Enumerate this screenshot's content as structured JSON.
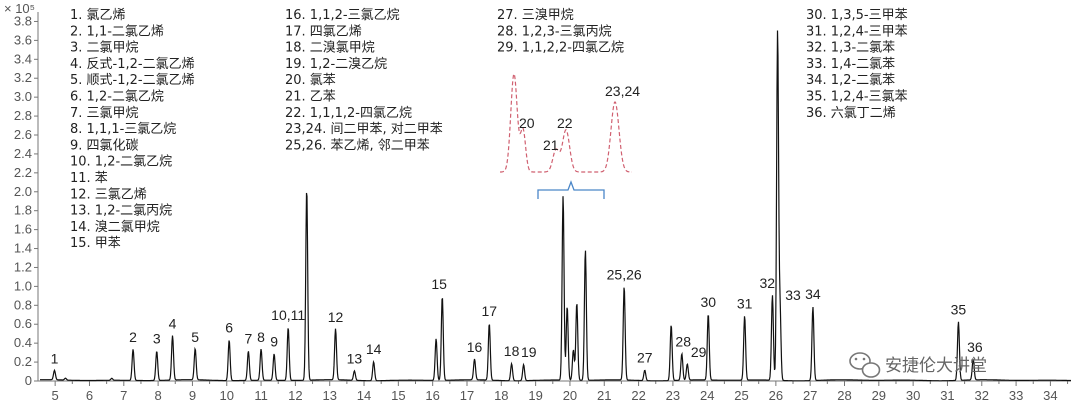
{
  "chart_data": {
    "type": "line",
    "title": "",
    "xlabel": "",
    "ylabel": "",
    "y_multiplier": "× 10⁵",
    "xlim": [
      4.5,
      34.6
    ],
    "ylim": [
      0,
      3.9
    ],
    "x_ticks": [
      "5",
      "6",
      "7",
      "8",
      "9",
      "10",
      "11",
      "12",
      "13",
      "14",
      "15",
      "16",
      "17",
      "18",
      "19",
      "20",
      "21",
      "22",
      "23",
      "24",
      "25",
      "26",
      "27",
      "28",
      "29",
      "30",
      "31",
      "32",
      "33",
      "34"
    ],
    "y_ticks": [
      "0",
      "0.2",
      "0.4",
      "0.6",
      "0.8",
      "1.0",
      "1.2",
      "1.4",
      "1.6",
      "1.8",
      "2.0",
      "2.2",
      "2.4",
      "2.6",
      "2.8",
      "3.0",
      "3.2",
      "3.4",
      "3.6",
      "3.8"
    ],
    "trace_color": "#111111",
    "peaks": [
      {
        "x": 4.98,
        "y": 0.1
      },
      {
        "x": 5.3,
        "y": 0.02
      },
      {
        "x": 6.65,
        "y": 0.02
      },
      {
        "x": 7.27,
        "y": 0.33
      },
      {
        "x": 7.96,
        "y": 0.31
      },
      {
        "x": 8.42,
        "y": 0.47
      },
      {
        "x": 9.08,
        "y": 0.33
      },
      {
        "x": 10.07,
        "y": 0.43
      },
      {
        "x": 10.63,
        "y": 0.31
      },
      {
        "x": 11.0,
        "y": 0.33
      },
      {
        "x": 11.38,
        "y": 0.28
      },
      {
        "x": 11.79,
        "y": 0.56
      },
      {
        "x": 12.33,
        "y": 2.03
      },
      {
        "x": 13.17,
        "y": 0.54
      },
      {
        "x": 13.72,
        "y": 0.1
      },
      {
        "x": 14.28,
        "y": 0.2
      },
      {
        "x": 16.1,
        "y": 0.44
      },
      {
        "x": 16.28,
        "y": 0.89
      },
      {
        "x": 17.22,
        "y": 0.22
      },
      {
        "x": 17.65,
        "y": 0.6
      },
      {
        "x": 18.3,
        "y": 0.18
      },
      {
        "x": 18.65,
        "y": 0.17
      },
      {
        "x": 19.8,
        "y": 1.95
      },
      {
        "x": 19.92,
        "y": 0.78
      },
      {
        "x": 20.1,
        "y": 0.32
      },
      {
        "x": 20.2,
        "y": 0.82
      },
      {
        "x": 20.45,
        "y": 1.38
      },
      {
        "x": 21.58,
        "y": 0.99
      },
      {
        "x": 22.18,
        "y": 0.11
      },
      {
        "x": 22.95,
        "y": 0.59
      },
      {
        "x": 23.26,
        "y": 0.28
      },
      {
        "x": 23.42,
        "y": 0.17
      },
      {
        "x": 24.03,
        "y": 0.7
      },
      {
        "x": 25.09,
        "y": 0.68
      },
      {
        "x": 25.9,
        "y": 0.9
      },
      {
        "x": 26.05,
        "y": 3.68
      },
      {
        "x": 26.12,
        "y": 0.77
      },
      {
        "x": 27.08,
        "y": 0.78
      },
      {
        "x": 31.32,
        "y": 0.62
      },
      {
        "x": 31.75,
        "y": 0.22
      }
    ],
    "peak_labels": [
      {
        "text": "1",
        "x": 4.98,
        "y": 0.1
      },
      {
        "text": "2",
        "x": 7.27,
        "y": 0.33
      },
      {
        "text": "3",
        "x": 7.96,
        "y": 0.31
      },
      {
        "text": "4",
        "x": 8.42,
        "y": 0.47
      },
      {
        "text": "5",
        "x": 9.08,
        "y": 0.33
      },
      {
        "text": "6",
        "x": 10.07,
        "y": 0.43
      },
      {
        "text": "7",
        "x": 10.63,
        "y": 0.31
      },
      {
        "text": "8",
        "x": 11.0,
        "y": 0.33
      },
      {
        "text": "9",
        "x": 11.38,
        "y": 0.28
      },
      {
        "text": "10,11",
        "x": 11.79,
        "y": 0.56
      },
      {
        "text": "12",
        "x": 13.17,
        "y": 0.54
      },
      {
        "text": "13",
        "x": 13.72,
        "y": 0.1
      },
      {
        "text": "14",
        "x": 14.28,
        "y": 0.2
      },
      {
        "text": "15",
        "x": 16.19,
        "y": 0.89
      },
      {
        "text": "16",
        "x": 17.22,
        "y": 0.22
      },
      {
        "text": "17",
        "x": 17.65,
        "y": 0.6
      },
      {
        "text": "18",
        "x": 18.3,
        "y": 0.18
      },
      {
        "text": "19",
        "x": 18.8,
        "y": 0.17
      },
      {
        "text": "25,26",
        "x": 21.58,
        "y": 0.99
      },
      {
        "text": "27",
        "x": 22.18,
        "y": 0.11
      },
      {
        "text": "28",
        "x": 23.3,
        "y": 0.28
      },
      {
        "text": "29",
        "x": 23.75,
        "y": 0.17
      },
      {
        "text": "30",
        "x": 24.03,
        "y": 0.7
      },
      {
        "text": "31",
        "x": 25.09,
        "y": 0.68
      },
      {
        "text": "32",
        "x": 25.75,
        "y": 0.9
      },
      {
        "text": "33",
        "x": 26.5,
        "y": 0.77
      },
      {
        "text": "34",
        "x": 27.08,
        "y": 0.78
      },
      {
        "text": "35",
        "x": 31.32,
        "y": 0.62
      },
      {
        "text": "36",
        "x": 31.8,
        "y": 0.22
      }
    ],
    "legend_columns": [
      [
        "1. 氯乙烯",
        "2. 1,1-二氯乙烯",
        "3. 二氯甲烷",
        "4. 反式-1,2-二氯乙烯",
        "5. 顺式-1,2-二氯乙烯",
        "6. 1,2-二氯乙烷",
        "7. 三氯甲烷",
        "8. 1,1,1-三氯乙烷",
        "9. 四氯化碳",
        "10. 1,2-二氯乙烷",
        "11. 苯",
        "12. 三氯乙烯",
        "13. 1,2-二氯丙烷",
        "14. 溴二氯甲烷",
        "15. 甲苯"
      ],
      [
        "16. 1,1,2-三氯乙烷",
        "17. 四氯乙烯",
        "18. 二溴氯甲烷",
        "19. 1,2-二溴乙烷",
        "20. 氯苯",
        "21. 乙苯",
        "22. 1,1,1,2-四氯乙烷",
        "23,24. 间二甲苯, 对二甲苯",
        "25,26. 苯乙烯, 邻二甲苯"
      ],
      [
        "27. 三溴甲烷",
        "28. 1,2,3-三氯丙烷",
        "29. 1,1,2,2-四氯乙烷"
      ],
      [
        "30. 1,3,5-三甲苯",
        "31. 1,2,4-三甲苯",
        "32. 1,3-二氯苯",
        "33. 1,4-二氯苯",
        "34. 1,2-二氯苯",
        "35. 1,2,4-三氯苯",
        "36. 六氯丁二烯"
      ]
    ],
    "inset": {
      "color": "#d06070",
      "bracket_color": "#4a86c8",
      "labels": [
        "20",
        "21",
        "22",
        "23,24"
      ]
    },
    "grid": false,
    "legend_placement": "top"
  },
  "watermark": {
    "icon": "wechat-icon",
    "text": "安捷伦大讲堂"
  }
}
